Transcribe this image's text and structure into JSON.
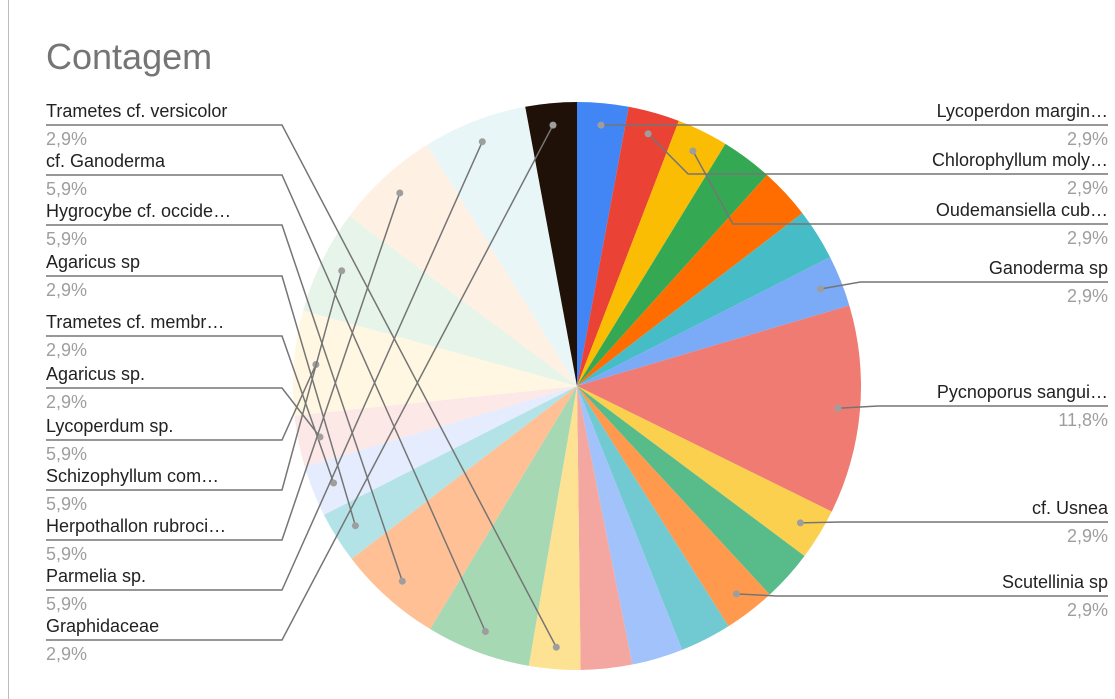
{
  "chart_data": {
    "type": "pie",
    "title": "Contagem",
    "slices": [
      {
        "label": "Lycoperdon margin…",
        "pct_label": "2,9%",
        "value": 2.9,
        "color": "#4285f4"
      },
      {
        "label": "Chlorophyllum moly…",
        "pct_label": "2,9%",
        "value": 2.9,
        "color": "#ea4335"
      },
      {
        "label": "Oudemansiella cub…",
        "pct_label": "2,9%",
        "value": 2.9,
        "color": "#fbbc04"
      },
      {
        "label": "",
        "pct_label": "",
        "value": 2.9,
        "color": "#34a853"
      },
      {
        "label": "",
        "pct_label": "",
        "value": 2.9,
        "color": "#ff6d01"
      },
      {
        "label": "",
        "pct_label": "",
        "value": 2.9,
        "color": "#46bdc6"
      },
      {
        "label": "Ganoderma sp",
        "pct_label": "2,9%",
        "value": 2.9,
        "color": "#7baaf7"
      },
      {
        "label": "Pycnoporus sangui…",
        "pct_label": "11,8%",
        "value": 11.8,
        "color": "#f07b72"
      },
      {
        "label": "cf. Usnea",
        "pct_label": "2,9%",
        "value": 2.9,
        "color": "#fcd04f"
      },
      {
        "label": "",
        "pct_label": "",
        "value": 2.9,
        "color": "#57bb8a"
      },
      {
        "label": "Scutellinia sp",
        "pct_label": "2,9%",
        "value": 2.9,
        "color": "#ff994d"
      },
      {
        "label": "",
        "pct_label": "",
        "value": 2.9,
        "color": "#71c9d1"
      },
      {
        "label": "",
        "pct_label": "",
        "value": 2.9,
        "color": "#a1c2fa"
      },
      {
        "label": "",
        "pct_label": "",
        "value": 2.9,
        "color": "#f4a7a1"
      },
      {
        "label": "Trametes cf. versicolor",
        "pct_label": "2,9%",
        "value": 2.9,
        "color": "#fde293"
      },
      {
        "label": "cf. Ganoderma",
        "pct_label": "5,9%",
        "value": 5.9,
        "color": "#a6d8b4"
      },
      {
        "label": "Hygrocybe cf. occide…",
        "pct_label": "5,9%",
        "value": 5.9,
        "color": "#ffc095"
      },
      {
        "label": "Agaricus sp",
        "pct_label": "2,9%",
        "value": 2.9,
        "color": "#b3e3e6"
      },
      {
        "label": "Trametes cf. membr…",
        "pct_label": "2,9%",
        "value": 2.9,
        "color": "#e4ecfd"
      },
      {
        "label": "Agaricus sp.",
        "pct_label": "2,9%",
        "value": 2.9,
        "color": "#fce8e6"
      },
      {
        "label": "Lycoperdum sp.",
        "pct_label": "5,9%",
        "value": 5.9,
        "color": "#fff7e1"
      },
      {
        "label": "Schizophyllum com…",
        "pct_label": "5,9%",
        "value": 5.9,
        "color": "#e6f4ea"
      },
      {
        "label": "Herpothallon rubroci…",
        "pct_label": "5,9%",
        "value": 5.9,
        "color": "#fff0e4"
      },
      {
        "label": "Parmelia sp.",
        "pct_label": "5,9%",
        "value": 5.9,
        "color": "#e8f6f7"
      },
      {
        "label": "Graphidaceae",
        "pct_label": "2,9%",
        "value": 2.9,
        "color": "#1f1107"
      }
    ]
  }
}
